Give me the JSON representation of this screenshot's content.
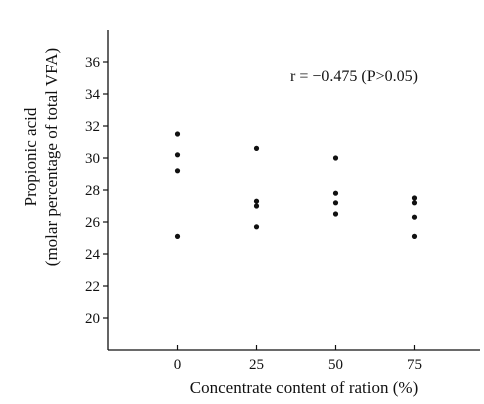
{
  "chart_data": {
    "type": "scatter",
    "title": "",
    "xlabel": "Concentrate content of ration (%)",
    "ylabel_lines": [
      "Propionic acid",
      "(molar percentage of total VFA)"
    ],
    "x_ticks": [
      "0",
      "25",
      "50",
      "75"
    ],
    "y_ticks": [
      "20",
      "22",
      "24",
      "26",
      "28",
      "30",
      "32",
      "34",
      "36"
    ],
    "xlim": [
      -22,
      97
    ],
    "ylim": [
      18,
      38
    ],
    "grid": false,
    "annotation": "r = −0.475 (P>0.05)",
    "series": [
      {
        "points": [
          {
            "x": 0,
            "y": 31.5
          },
          {
            "x": 0,
            "y": 30.2
          },
          {
            "x": 0,
            "y": 29.2
          },
          {
            "x": 0,
            "y": 25.1
          },
          {
            "x": 25,
            "y": 30.6
          },
          {
            "x": 25,
            "y": 27.3
          },
          {
            "x": 25,
            "y": 27.0
          },
          {
            "x": 25,
            "y": 25.7
          },
          {
            "x": 50,
            "y": 30.0
          },
          {
            "x": 50,
            "y": 27.8
          },
          {
            "x": 50,
            "y": 27.2
          },
          {
            "x": 50,
            "y": 26.5
          },
          {
            "x": 75,
            "y": 27.5
          },
          {
            "x": 75,
            "y": 27.2
          },
          {
            "x": 75,
            "y": 26.3
          },
          {
            "x": 75,
            "y": 25.1
          }
        ]
      }
    ]
  }
}
